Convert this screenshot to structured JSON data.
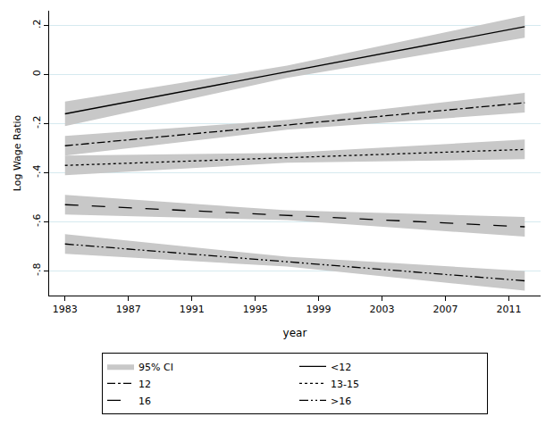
{
  "chart_data": {
    "type": "line",
    "x_label": "year",
    "y_label": "Log Wage Ratio",
    "x": [
      1983,
      1997,
      2012
    ],
    "ci_name": "95% CI",
    "ci_color": "#c8c8c8",
    "series": [
      {
        "name": "<12",
        "color": "#000000",
        "line_style": "solid",
        "values": [
          -0.16,
          0.011,
          0.195
        ],
        "ci_lower": [
          -0.21,
          -0.014,
          0.15
        ],
        "ci_upper": [
          -0.11,
          0.036,
          0.24
        ]
      },
      {
        "name": "12",
        "color": "#000000",
        "line_style": "dashdot",
        "values": [
          -0.29,
          -0.205,
          -0.115
        ],
        "ci_lower": [
          -0.33,
          -0.225,
          -0.155
        ],
        "ci_upper": [
          -0.25,
          -0.185,
          -0.075
        ]
      },
      {
        "name": "13-15",
        "color": "#000000",
        "line_style": "dot",
        "values": [
          -0.37,
          -0.339,
          -0.305
        ],
        "ci_lower": [
          -0.41,
          -0.359,
          -0.345
        ],
        "ci_upper": [
          -0.33,
          -0.319,
          -0.265
        ]
      },
      {
        "name": "16",
        "color": "#000000",
        "line_style": "longdash",
        "values": [
          -0.53,
          -0.573,
          -0.62
        ],
        "ci_lower": [
          -0.57,
          -0.593,
          -0.66
        ],
        "ci_upper": [
          -0.49,
          -0.553,
          -0.58
        ]
      },
      {
        "name": ">16",
        "color": "#000000",
        "line_style": "dashdotdot",
        "values": [
          -0.69,
          -0.762,
          -0.84
        ],
        "ci_lower": [
          -0.73,
          -0.782,
          -0.88
        ],
        "ci_upper": [
          -0.65,
          -0.742,
          -0.8
        ]
      }
    ],
    "xlim": [
      1982,
      2013
    ],
    "xticks": [
      1983,
      1987,
      1991,
      1995,
      1999,
      2003,
      2007,
      2011
    ],
    "ylim": [
      -0.9,
      0.26
    ],
    "yticks": [
      {
        "value": -0.8,
        "label": "-.8"
      },
      {
        "value": -0.6,
        "label": "-.6"
      },
      {
        "value": -0.4,
        "label": "-.4"
      },
      {
        "value": -0.2,
        "label": "-.2"
      },
      0,
      {
        "value": 0.2,
        "label": ".2"
      }
    ],
    "grid": true,
    "legend": "bottom"
  }
}
